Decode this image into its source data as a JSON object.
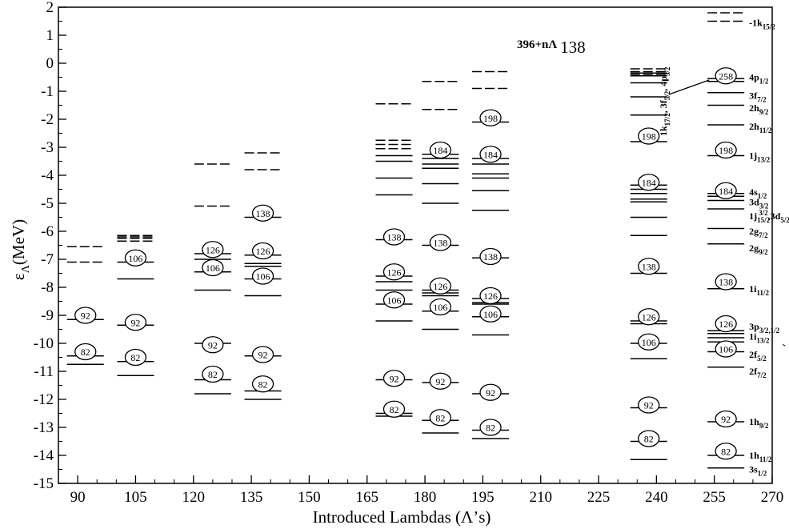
{
  "chart_data": {
    "type": "scatter",
    "title_bold": "396+nΛ",
    "title_number": "138",
    "xlabel": "Introduced Lambdas (Λ’s)",
    "ylabel_main": "ε",
    "ylabel_sub": "Λ",
    "ylabel_unit": "(MeV)",
    "xlim": [
      85,
      270
    ],
    "ylim": [
      -15,
      2
    ],
    "xticks": [
      "90",
      "105",
      "120",
      "135",
      "150",
      "165",
      "180",
      "195",
      "210",
      "225",
      "240",
      "255",
      "270"
    ],
    "yticks": [
      "2",
      "1",
      "0",
      "-1",
      "-2",
      "-3",
      "-4",
      "-5",
      "-6",
      "-7",
      "-8",
      "-9",
      "-10",
      "-11",
      "-12",
      "-13",
      "-14",
      "-15"
    ],
    "columns": [
      {
        "x": 92,
        "solid": [
          -9.15,
          -10.45,
          -10.75
        ],
        "dashed": [
          -6.55,
          -7.1
        ],
        "circles": [
          {
            "label": "92",
            "y": -9.0
          },
          {
            "label": "82",
            "y": -10.3
          }
        ]
      },
      {
        "x": 105,
        "solid": [
          -7.1,
          -7.7,
          -9.35,
          -10.65,
          -11.15
        ],
        "dashed": [
          -6.15,
          -6.2,
          -6.25,
          -6.35
        ],
        "circles": [
          {
            "label": "106",
            "y": -6.95
          },
          {
            "label": "92",
            "y": -9.25
          },
          {
            "label": "82",
            "y": -10.5
          }
        ]
      },
      {
        "x": 125,
        "solid": [
          -6.8,
          -7.0,
          -7.45,
          -8.1,
          -10.0,
          -11.3,
          -11.8
        ],
        "dashed": [
          -3.6,
          -5.1
        ],
        "circles": [
          {
            "label": "126",
            "y": -6.65
          },
          {
            "label": "106",
            "y": -7.3
          },
          {
            "label": "92",
            "y": -10.05
          },
          {
            "label": "82",
            "y": -11.1
          }
        ]
      },
      {
        "x": 138,
        "solid": [
          -5.5,
          -6.85,
          -7.15,
          -7.25,
          -7.7,
          -8.3,
          -10.45,
          -11.7,
          -12.0
        ],
        "dashed": [
          -3.2,
          -3.8
        ],
        "circles": [
          {
            "label": "138",
            "y": -5.35
          },
          {
            "label": "126",
            "y": -6.7
          },
          {
            "label": "106",
            "y": -7.6
          },
          {
            "label": "92",
            "y": -10.4
          },
          {
            "label": "82",
            "y": -11.45
          }
        ]
      },
      {
        "x": 172,
        "solid": [
          -3.3,
          -3.5,
          -4.1,
          -4.7,
          -6.3,
          -7.6,
          -7.8,
          -8.1,
          -8.6,
          -9.2,
          -11.3,
          -12.5,
          -12.6
        ],
        "dashed": [
          -1.45,
          -2.75,
          -2.9,
          -3.05
        ],
        "circles": [
          {
            "label": "138",
            "y": -6.2
          },
          {
            "label": "126",
            "y": -7.45
          },
          {
            "label": "106",
            "y": -8.45
          },
          {
            "label": "92",
            "y": -11.25
          },
          {
            "label": "82",
            "y": -12.35
          }
        ]
      },
      {
        "x": 184,
        "solid": [
          -3.25,
          -3.4,
          -3.6,
          -3.75,
          -4.3,
          -5.0,
          -6.5,
          -8.1,
          -8.2,
          -8.3,
          -8.85,
          -9.5,
          -11.4,
          -12.75,
          -13.2
        ],
        "dashed": [
          -0.65,
          -1.65
        ],
        "circles": [
          {
            "label": "184",
            "y": -3.1
          },
          {
            "label": "138",
            "y": -6.4
          },
          {
            "label": "126",
            "y": -7.95
          },
          {
            "label": "106",
            "y": -8.7
          },
          {
            "label": "92",
            "y": -11.35
          },
          {
            "label": "82",
            "y": -12.65
          }
        ]
      },
      {
        "x": 197,
        "solid": [
          -2.1,
          -3.4,
          -3.6,
          -3.95,
          -4.1,
          -4.55,
          -5.25,
          -6.95,
          -8.4,
          -8.55,
          -8.6,
          -9.05,
          -9.7,
          -11.8,
          -13.1,
          -13.4
        ],
        "dashed": [
          -0.3,
          -0.9
        ],
        "circles": [
          {
            "label": "198",
            "y": -1.95
          },
          {
            "label": "184",
            "y": -3.25
          },
          {
            "label": "138",
            "y": -6.9
          },
          {
            "label": "126",
            "y": -8.3
          },
          {
            "label": "106",
            "y": -8.95
          },
          {
            "label": "92",
            "y": -11.75
          },
          {
            "label": "82",
            "y": -13.0
          }
        ]
      },
      {
        "x": 238,
        "solid": [
          -0.35,
          -0.45,
          -0.7,
          -1.2,
          -1.85,
          -2.8,
          -4.35,
          -4.5,
          -4.65,
          -4.85,
          -4.95,
          -5.5,
          -6.15,
          -7.5,
          -9.2,
          -9.3,
          -10.0,
          -10.55,
          -12.3,
          -13.5,
          -14.15
        ],
        "dashed": [
          -0.2,
          -0.3,
          -0.4
        ],
        "circles": [
          {
            "label": "198",
            "y": -2.6
          },
          {
            "label": "184",
            "y": -4.25
          },
          {
            "label": "138",
            "y": -7.25
          },
          {
            "label": "126",
            "y": -9.05
          },
          {
            "label": "106",
            "y": -9.95
          },
          {
            "label": "92",
            "y": -12.2
          },
          {
            "label": "82",
            "y": -13.4
          }
        ]
      },
      {
        "x": 258,
        "solid": [
          -0.55,
          -0.65,
          -1.05,
          -1.5,
          -2.2,
          -3.3,
          -4.65,
          -4.75,
          -4.9,
          -5.2,
          -5.9,
          -6.45,
          -8.05,
          -9.55,
          -9.65,
          -9.8,
          -9.95,
          -10.3,
          -10.85,
          -12.8,
          -14.0,
          -14.45
        ],
        "dashed": [
          1.8,
          1.5
        ],
        "circles": [
          {
            "label": "258",
            "y": -0.45
          },
          {
            "label": "198",
            "y": -3.1
          },
          {
            "label": "184",
            "y": -4.55
          },
          {
            "label": "138",
            "y": -7.8
          },
          {
            "label": "126",
            "y": -9.3
          },
          {
            "label": "106",
            "y": -10.2
          },
          {
            "label": "92",
            "y": -12.7
          },
          {
            "label": "82",
            "y": -13.85
          }
        ]
      }
    ],
    "orbital_labels": [
      {
        "main": "-1k",
        "sub": "15/2",
        "y": 1.45
      },
      {
        "main": "4p",
        "sub": "1/2",
        "y": -0.5
      },
      {
        "main": "3f",
        "sub": "7/2",
        "y": -1.15
      },
      {
        "main": "2h",
        "sub": "9/2",
        "y": -1.6
      },
      {
        "main": "2h",
        "sub": "11/2",
        "y": -2.25
      },
      {
        "main": "1j",
        "sub": "13/2",
        "y": -3.3
      },
      {
        "main": "4s",
        "sub": "1/2",
        "y": -4.6
      },
      {
        "main": "3d",
        "sub": "3/2",
        "y": -4.95
      },
      {
        "main": "1j",
        "sub": "15/2",
        "sup": "3/2",
        "tail": "3d",
        "tail_sub": "5/2",
        "y": -5.45
      },
      {
        "main": "2g",
        "sub": "7/2",
        "y": -6.0
      },
      {
        "main": "2g",
        "sub": "9/2",
        "y": -6.6
      },
      {
        "main": "1i",
        "sub": "11/2",
        "y": -8.05
      },
      {
        "main": "3p",
        "sub": "3/2,1/2",
        "y": -9.4
      },
      {
        "main": "1i",
        "sub": "13/2",
        "y": -9.75
      },
      {
        "main": "2f",
        "sub": "5/2",
        "y": -10.4
      },
      {
        "main": "2f",
        "sub": "7/2",
        "y": -11.0
      },
      {
        "main": "1h",
        "sub": "9/2",
        "y": -12.8
      },
      {
        "main": "1h",
        "sub": "11/2",
        "y": -14.0
      },
      {
        "main": "3s",
        "sub": "1/2",
        "y": -14.5
      }
    ],
    "rotated_label": {
      "parts": [
        [
          "1k",
          "17/2"
        ],
        [
          "3f",
          "5/2"
        ],
        [
          "4p",
          "3/2"
        ]
      ]
    }
  }
}
